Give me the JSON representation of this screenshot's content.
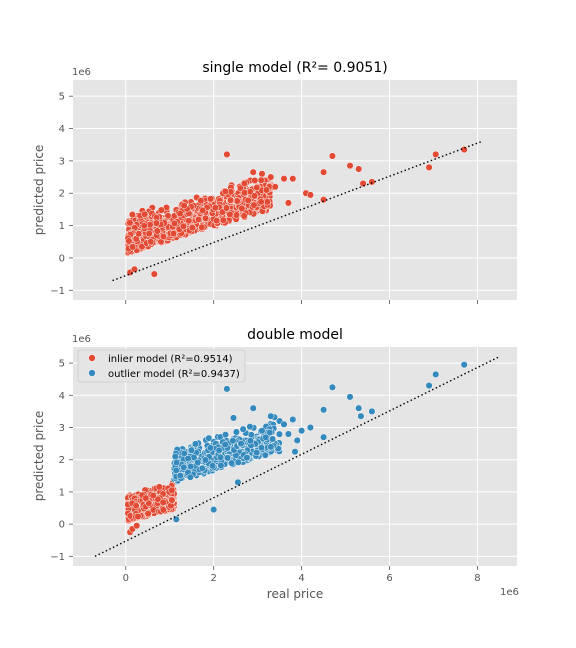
{
  "colors": {
    "inlier": "#E24A33",
    "outlier": "#348ABD",
    "panel_bg": "#E5E5E5",
    "grid": "#FFFFFF"
  },
  "chart_data": [
    {
      "type": "scatter",
      "title": "single model (R²= 0.9051)",
      "xlabel": "",
      "ylabel": "predicted price",
      "x_offset_label": "",
      "y_offset_label": "1e6",
      "xlim": [
        -1.2,
        8.9
      ],
      "ylim": [
        -1.3,
        5.5
      ],
      "xticks": [
        0,
        2,
        4,
        6,
        8
      ],
      "xticklabels": [
        "",
        "",
        "",
        "",
        ""
      ],
      "yticks": [
        -1,
        0,
        1,
        2,
        3,
        4,
        5
      ],
      "yticklabels": [
        "−1",
        "0",
        "1",
        "2",
        "3",
        "4",
        "5"
      ],
      "grid": true,
      "reference_line": {
        "x": [
          -0.3,
          8.1
        ],
        "y": [
          -0.7,
          3.6
        ]
      },
      "series": [
        {
          "name": "",
          "color": "#E24A33",
          "cluster": {
            "seed": 7,
            "count": 900,
            "x": [
              0.05,
              3.3
            ],
            "y_base": [
              0.0,
              0.5
            ],
            "slope": 0.42,
            "spread": [
              0.15,
              1.35
            ]
          },
          "points": [
            [
              2.3,
              3.2
            ],
            [
              2.9,
              2.65
            ],
            [
              3.1,
              2.6
            ],
            [
              3.3,
              2.5
            ],
            [
              3.6,
              2.45
            ],
            [
              3.8,
              2.45
            ],
            [
              4.1,
              2.0
            ],
            [
              4.2,
              1.95
            ],
            [
              4.5,
              1.8
            ],
            [
              4.5,
              2.65
            ],
            [
              4.7,
              3.15
            ],
            [
              5.1,
              2.85
            ],
            [
              5.3,
              2.75
            ],
            [
              5.4,
              2.3
            ],
            [
              5.6,
              2.35
            ],
            [
              6.9,
              2.8
            ],
            [
              7.05,
              3.2
            ],
            [
              7.7,
              3.35
            ],
            [
              3.2,
              2.1
            ],
            [
              3.4,
              2.2
            ],
            [
              3.7,
              1.7
            ],
            [
              2.7,
              2.3
            ],
            [
              0.1,
              -0.45
            ],
            [
              0.2,
              -0.35
            ],
            [
              0.65,
              -0.5
            ]
          ]
        }
      ]
    },
    {
      "type": "scatter",
      "title": "double model",
      "xlabel": "real price",
      "ylabel": "predicted price",
      "x_offset_label": "1e6",
      "y_offset_label": "1e6",
      "xlim": [
        -1.2,
        8.9
      ],
      "ylim": [
        -1.3,
        5.5
      ],
      "xticks": [
        0,
        2,
        4,
        6,
        8
      ],
      "xticklabels": [
        "0",
        "2",
        "4",
        "6",
        "8"
      ],
      "yticks": [
        -1,
        0,
        1,
        2,
        3,
        4,
        5
      ],
      "yticklabels": [
        "−1",
        "0",
        "1",
        "2",
        "3",
        "4",
        "5"
      ],
      "grid": true,
      "legend_placement": "top-left",
      "reference_line": {
        "x": [
          -0.7,
          8.5
        ],
        "y": [
          -1.0,
          5.2
        ]
      },
      "series": [
        {
          "name": "inlier model (R²=0.9514)",
          "color": "#E24A33",
          "cluster": {
            "seed": 11,
            "count": 600,
            "x": [
              0.05,
              1.1
            ],
            "y_base": [
              0.0,
              0.55
            ],
            "slope": 0.35,
            "spread": [
              0.1,
              0.95
            ]
          },
          "points": [
            [
              0.1,
              -0.25
            ],
            [
              0.15,
              -0.15
            ],
            [
              0.25,
              -0.05
            ],
            [
              1.05,
              1.05
            ]
          ]
        },
        {
          "name": "outlier model (R²=0.9437)",
          "color": "#348ABD",
          "cluster": {
            "seed": 23,
            "count": 420,
            "x": [
              1.1,
              3.5
            ],
            "y_base": [
              1.2,
              1.5
            ],
            "slope": 0.4,
            "spread": [
              0.1,
              1.25
            ]
          },
          "points": [
            [
              1.15,
              0.15
            ],
            [
              2.0,
              0.45
            ],
            [
              2.55,
              1.3
            ],
            [
              2.3,
              4.2
            ],
            [
              2.45,
              3.3
            ],
            [
              2.9,
              3.6
            ],
            [
              3.3,
              3.35
            ],
            [
              3.5,
              3.2
            ],
            [
              3.6,
              3.1
            ],
            [
              3.8,
              3.25
            ],
            [
              3.85,
              2.25
            ],
            [
              3.9,
              2.6
            ],
            [
              4.0,
              2.9
            ],
            [
              4.2,
              3.0
            ],
            [
              4.5,
              3.55
            ],
            [
              4.5,
              2.7
            ],
            [
              4.7,
              4.25
            ],
            [
              5.1,
              3.95
            ],
            [
              5.3,
              3.6
            ],
            [
              5.35,
              3.35
            ],
            [
              5.6,
              3.5
            ],
            [
              6.9,
              4.3
            ],
            [
              7.05,
              4.65
            ],
            [
              7.7,
              4.95
            ],
            [
              3.1,
              2.9
            ],
            [
              3.3,
              2.4
            ],
            [
              3.7,
              2.8
            ]
          ]
        }
      ]
    }
  ]
}
